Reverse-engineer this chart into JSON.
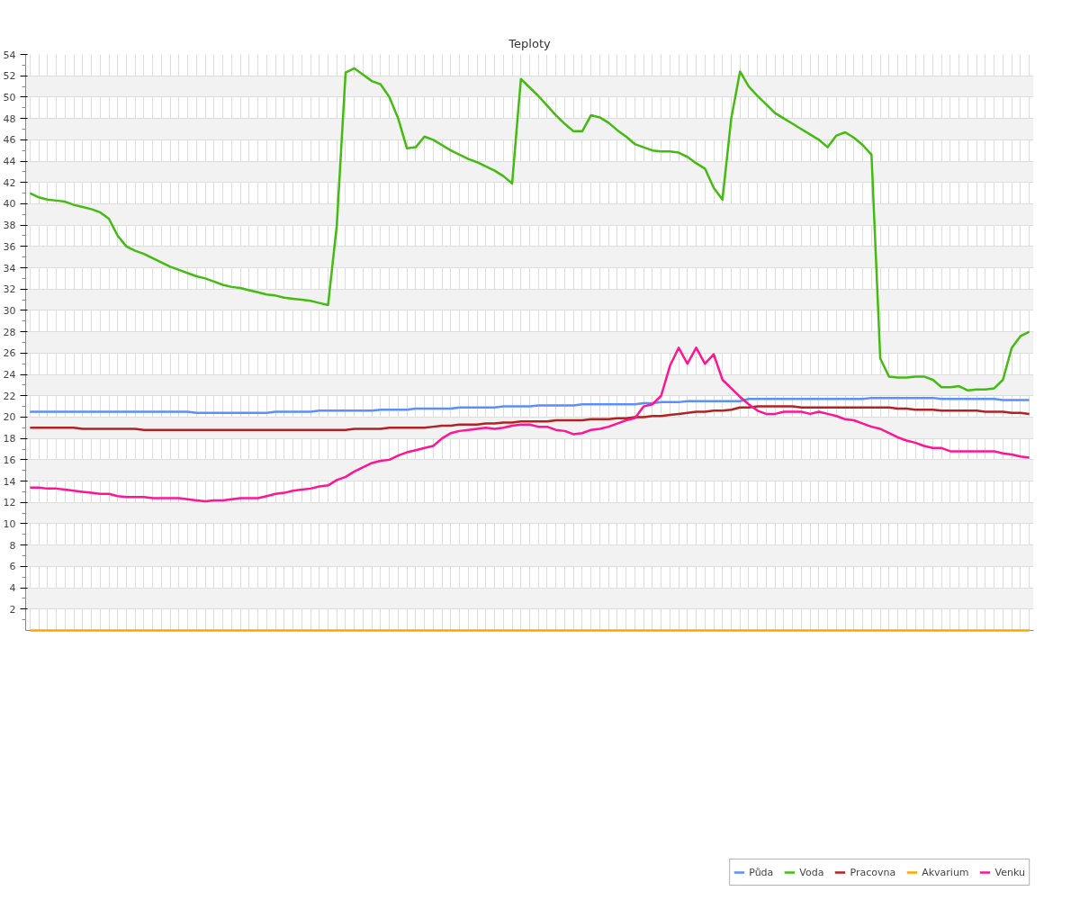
{
  "chart_data": {
    "type": "line",
    "title": "Teploty",
    "categories": [
      null,
      null,
      null,
      null,
      null,
      null,
      null,
      null,
      null,
      null,
      null,
      null,
      null,
      null,
      null,
      null,
      null,
      null,
      null,
      null,
      null,
      null,
      null,
      null,
      null,
      null,
      null,
      null,
      null,
      null,
      null,
      null,
      null,
      null,
      null,
      null,
      null,
      null,
      null,
      null,
      null,
      null,
      null,
      null,
      null,
      null,
      null,
      null,
      null,
      null,
      null,
      null,
      null,
      null,
      null,
      null,
      null,
      null,
      null,
      null,
      null,
      null,
      null,
      null,
      null,
      null,
      null,
      null,
      null,
      null,
      null,
      null,
      null,
      null,
      null,
      null,
      null,
      null,
      null,
      null,
      null,
      null,
      null,
      null,
      null,
      null,
      null,
      null,
      null,
      null,
      null,
      null,
      null,
      null,
      null,
      null,
      null,
      null,
      null,
      null,
      null,
      null,
      null,
      null,
      null,
      null,
      null,
      null,
      null,
      null,
      null,
      null,
      null,
      null,
      null
    ],
    "ylim": [
      0,
      54
    ],
    "yticks": [
      2,
      4,
      6,
      8,
      10,
      12,
      14,
      16,
      18,
      20,
      22,
      24,
      26,
      28,
      30,
      32,
      34,
      36,
      38,
      40,
      42,
      44,
      46,
      48,
      50,
      52,
      54
    ],
    "grid": true,
    "legend": "bottom",
    "marker": "none",
    "line_style": "solid",
    "series": [
      {
        "name": "Půda",
        "color": "#5b8ff9",
        "values": [
          20.5,
          20.5,
          20.5,
          20.5,
          20.5,
          20.5,
          20.5,
          20.5,
          20.5,
          20.5,
          20.5,
          20.5,
          20.5,
          20.5,
          20.5,
          20.5,
          20.5,
          20.5,
          20.5,
          20.4,
          20.4,
          20.4,
          20.4,
          20.4,
          20.4,
          20.4,
          20.4,
          20.4,
          20.5,
          20.5,
          20.5,
          20.5,
          20.5,
          20.6,
          20.6,
          20.6,
          20.6,
          20.6,
          20.6,
          20.6,
          20.7,
          20.7,
          20.7,
          20.7,
          20.8,
          20.8,
          20.8,
          20.8,
          20.8,
          20.9,
          20.9,
          20.9,
          20.9,
          20.9,
          21.0,
          21.0,
          21.0,
          21.0,
          21.1,
          21.1,
          21.1,
          21.1,
          21.1,
          21.2,
          21.2,
          21.2,
          21.2,
          21.2,
          21.2,
          21.2,
          21.3,
          21.3,
          21.4,
          21.4,
          21.4,
          21.5,
          21.5,
          21.5,
          21.5,
          21.5,
          21.5,
          21.5,
          21.7,
          21.7,
          21.7,
          21.7,
          21.7,
          21.7,
          21.7,
          21.7,
          21.7,
          21.7,
          21.7,
          21.7,
          21.7,
          21.7,
          21.8,
          21.8,
          21.8,
          21.8,
          21.8,
          21.8,
          21.8,
          21.8,
          21.7,
          21.7,
          21.7,
          21.7,
          21.7,
          21.7,
          21.7,
          21.6,
          21.6,
          21.6,
          21.6
        ]
      },
      {
        "name": "Voda",
        "color": "#44bb11",
        "values": [
          41.0,
          40.6,
          40.4,
          40.3,
          40.2,
          39.9,
          39.7,
          39.5,
          39.2,
          38.6,
          37.0,
          36.0,
          35.6,
          35.3,
          34.9,
          34.5,
          34.1,
          33.8,
          33.5,
          33.2,
          33.0,
          32.7,
          32.4,
          32.2,
          32.1,
          31.9,
          31.7,
          31.5,
          31.4,
          31.2,
          31.1,
          31.0,
          30.9,
          30.7,
          30.5,
          38.0,
          52.3,
          52.7,
          52.1,
          51.5,
          51.2,
          50.0,
          48.0,
          45.2,
          45.3,
          46.3,
          46.0,
          45.5,
          45.0,
          44.6,
          44.2,
          43.9,
          43.5,
          43.1,
          42.6,
          41.9,
          51.7,
          50.9,
          50.1,
          49.2,
          48.3,
          47.5,
          46.8,
          46.8,
          48.3,
          48.1,
          47.6,
          46.9,
          46.3,
          45.6,
          45.3,
          45.0,
          44.9,
          44.9,
          44.8,
          44.4,
          43.8,
          43.3,
          41.5,
          40.4,
          48.0,
          52.4,
          51.0,
          50.1,
          49.3,
          48.5,
          48.0,
          47.5,
          47.0,
          46.5,
          46.0,
          45.3,
          46.4,
          46.7,
          46.2,
          45.5,
          44.6,
          25.5,
          23.8,
          23.7,
          23.7,
          23.8,
          23.8,
          23.5,
          22.8,
          22.8,
          22.9,
          22.5,
          22.6,
          22.6,
          22.7,
          23.5,
          26.5,
          27.6,
          28.0
        ]
      },
      {
        "name": "Pracovna",
        "color": "#b22222",
        "values": [
          19.0,
          19.0,
          19.0,
          19.0,
          19.0,
          19.0,
          18.9,
          18.9,
          18.9,
          18.9,
          18.9,
          18.9,
          18.9,
          18.8,
          18.8,
          18.8,
          18.8,
          18.8,
          18.8,
          18.8,
          18.8,
          18.8,
          18.8,
          18.8,
          18.8,
          18.8,
          18.8,
          18.8,
          18.8,
          18.8,
          18.8,
          18.8,
          18.8,
          18.8,
          18.8,
          18.8,
          18.8,
          18.9,
          18.9,
          18.9,
          18.9,
          19.0,
          19.0,
          19.0,
          19.0,
          19.0,
          19.1,
          19.2,
          19.2,
          19.3,
          19.3,
          19.3,
          19.4,
          19.4,
          19.5,
          19.5,
          19.6,
          19.6,
          19.6,
          19.6,
          19.7,
          19.7,
          19.7,
          19.7,
          19.8,
          19.8,
          19.8,
          19.9,
          19.9,
          20.0,
          20.0,
          20.1,
          20.1,
          20.2,
          20.3,
          20.4,
          20.5,
          20.5,
          20.6,
          20.6,
          20.7,
          20.9,
          20.9,
          21.0,
          21.0,
          21.0,
          21.0,
          21.0,
          20.9,
          20.9,
          20.9,
          20.9,
          20.9,
          20.9,
          20.9,
          20.9,
          20.9,
          20.9,
          20.9,
          20.8,
          20.8,
          20.7,
          20.7,
          20.7,
          20.6,
          20.6,
          20.6,
          20.6,
          20.6,
          20.5,
          20.5,
          20.5,
          20.4,
          20.4,
          20.3
        ]
      },
      {
        "name": "Akvarium",
        "color": "#ffa500",
        "values": [
          0,
          0,
          0,
          0,
          0,
          0,
          0,
          0,
          0,
          0,
          0,
          0,
          0,
          0,
          0,
          0,
          0,
          0,
          0,
          0,
          0,
          0,
          0,
          0,
          0,
          0,
          0,
          0,
          0,
          0,
          0,
          0,
          0,
          0,
          0,
          0,
          0,
          0,
          0,
          0,
          0,
          0,
          0,
          0,
          0,
          0,
          0,
          0,
          0,
          0,
          0,
          0,
          0,
          0,
          0,
          0,
          0,
          0,
          0,
          0,
          0,
          0,
          0,
          0,
          0,
          0,
          0,
          0,
          0,
          0,
          0,
          0,
          0,
          0,
          0,
          0,
          0,
          0,
          0,
          0,
          0,
          0,
          0,
          0,
          0,
          0,
          0,
          0,
          0,
          0,
          0,
          0,
          0,
          0,
          0,
          0,
          0,
          0,
          0,
          0,
          0,
          0,
          0,
          0,
          0,
          0,
          0,
          0,
          0,
          0,
          0,
          0,
          0,
          0,
          0
        ]
      },
      {
        "name": "Venku",
        "color": "#ff1493",
        "values": [
          13.4,
          13.4,
          13.3,
          13.3,
          13.2,
          13.1,
          13.0,
          12.9,
          12.8,
          12.8,
          12.6,
          12.5,
          12.5,
          12.5,
          12.4,
          12.4,
          12.4,
          12.4,
          12.3,
          12.2,
          12.1,
          12.2,
          12.2,
          12.3,
          12.4,
          12.4,
          12.4,
          12.6,
          12.8,
          12.9,
          13.1,
          13.2,
          13.3,
          13.5,
          13.6,
          14.1,
          14.4,
          14.9,
          15.3,
          15.7,
          15.9,
          16.0,
          16.4,
          16.7,
          16.9,
          17.1,
          17.3,
          18.0,
          18.5,
          18.7,
          18.8,
          18.9,
          19.0,
          18.9,
          19.0,
          19.2,
          19.3,
          19.3,
          19.1,
          19.1,
          18.8,
          18.7,
          18.4,
          18.5,
          18.8,
          18.9,
          19.1,
          19.4,
          19.7,
          19.9,
          21.0,
          21.2,
          22.0,
          24.8,
          26.5,
          25.0,
          26.5,
          25.0,
          25.9,
          23.5,
          22.7,
          21.9,
          21.2,
          20.6,
          20.3,
          20.3,
          20.5,
          20.5,
          20.5,
          20.3,
          20.5,
          20.3,
          20.1,
          19.8,
          19.7,
          19.4,
          19.1,
          18.9,
          18.5,
          18.1,
          17.8,
          17.6,
          17.3,
          17.1,
          17.1,
          16.8,
          16.8,
          16.8,
          16.8,
          16.8,
          16.8,
          16.6,
          16.5,
          16.3,
          16.2
        ]
      }
    ]
  }
}
